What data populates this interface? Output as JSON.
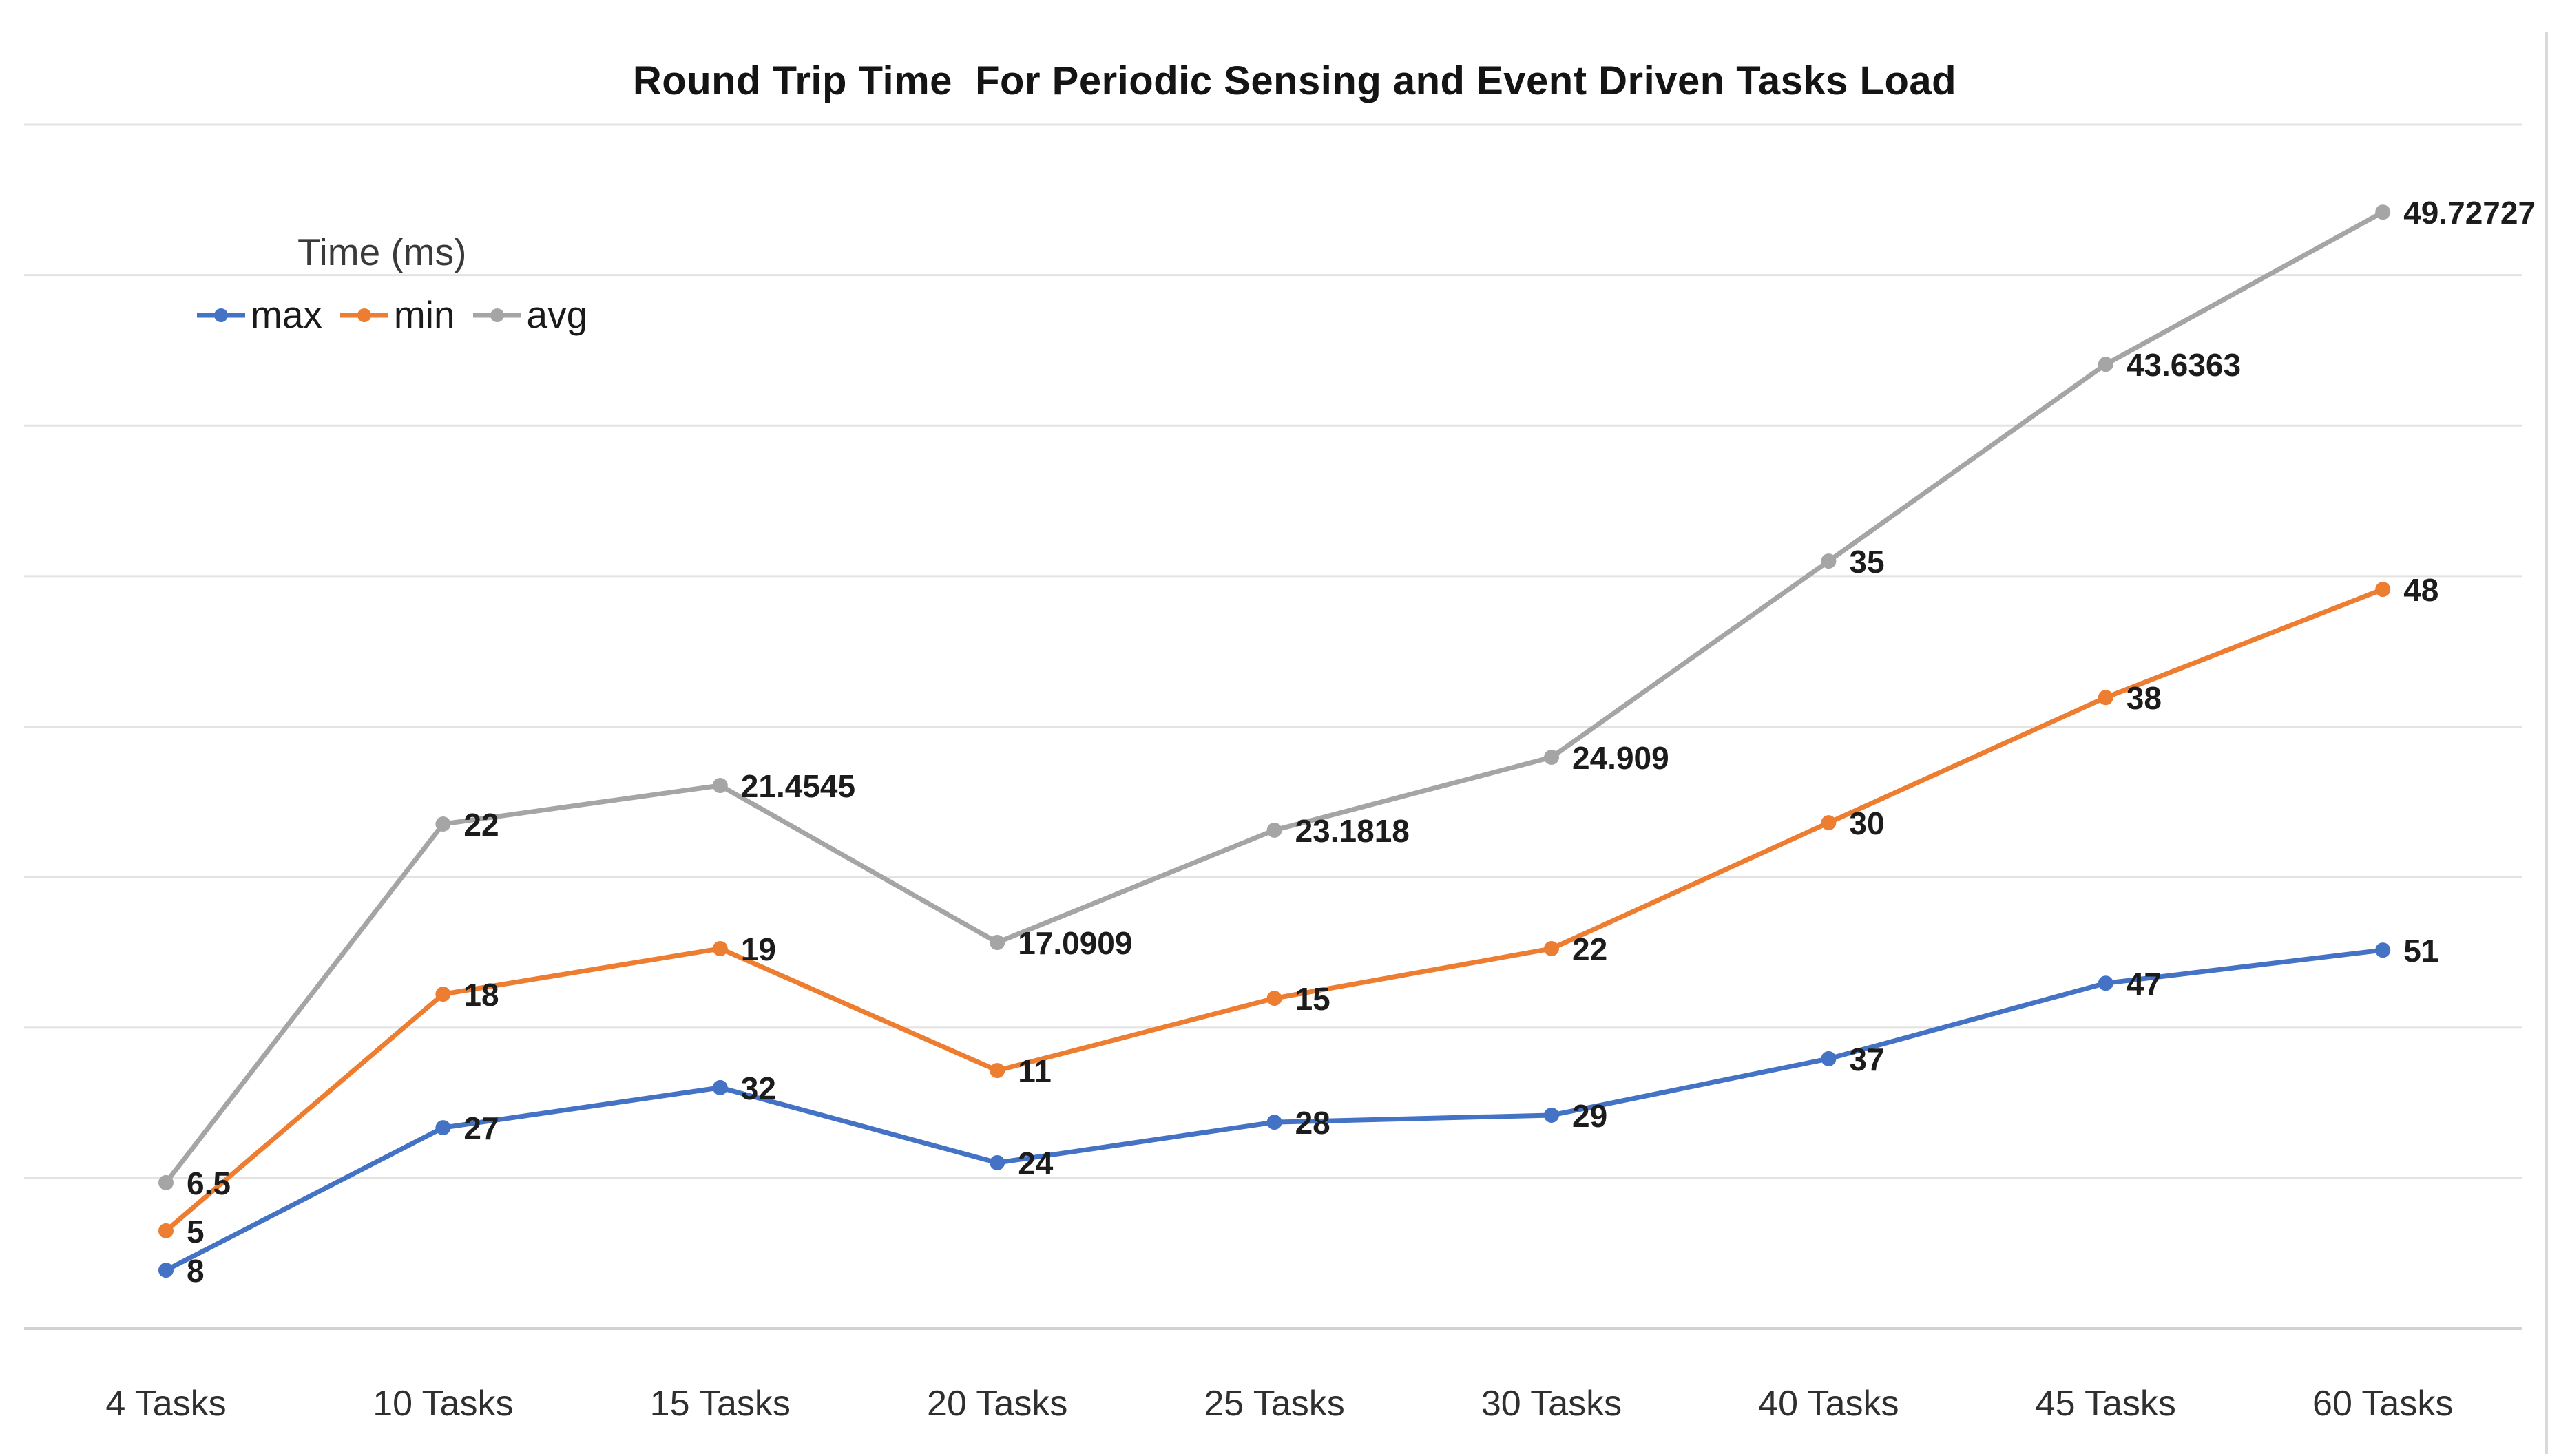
{
  "title": "Round Trip Time  For Periodic Sensing and Event Driven Tasks Load",
  "y_axis_title": "Time (ms)",
  "legend": [
    {
      "label": "max",
      "color": "#4472C4"
    },
    {
      "label": "min",
      "color": "#ED7D31"
    },
    {
      "label": "avg",
      "color": "#A5A5A5"
    }
  ],
  "chart_data": {
    "type": "line",
    "title": "Round Trip Time  For Periodic Sensing and Event Driven Tasks Load",
    "ylabel": "Time (ms)",
    "xlabel": "",
    "categories": [
      "4 Tasks",
      "10 Tasks",
      "15 Tasks",
      "20 Tasks",
      "25 Tasks",
      "30 Tasks",
      "40 Tasks",
      "45 Tasks",
      "60 Tasks"
    ],
    "series": [
      {
        "name": "max",
        "color": "#4472C4",
        "values": [
          8,
          27,
          32,
          24,
          28,
          29,
          37,
          47,
          51
        ],
        "labels": [
          "8",
          "27",
          "32",
          "24",
          "28",
          "29",
          "37",
          "47",
          "51"
        ],
        "plot_values": [
          2.67,
          9.18,
          11.01,
          7.58,
          9.43,
          9.75,
          12.33,
          15.78,
          17.29
        ]
      },
      {
        "name": "min",
        "color": "#ED7D31",
        "values": [
          5,
          18,
          19,
          11,
          15,
          22,
          30,
          38,
          48
        ],
        "labels": [
          "5",
          "18",
          "19",
          "11",
          "15",
          "22",
          "30",
          "38",
          "48"
        ],
        "plot_values": [
          4.47,
          15.28,
          17.36,
          11.79,
          15.09,
          17.36,
          23.11,
          28.83,
          33.77
        ]
      },
      {
        "name": "avg",
        "color": "#A5A5A5",
        "values": [
          6.5,
          22,
          21.4545,
          17.0909,
          23.1818,
          24.909,
          35,
          43.6363,
          49.72727
        ],
        "labels": [
          "6.5",
          "22",
          "21.4545",
          "17.0909",
          "23.1818",
          "24.909",
          "35",
          "43.6363",
          "49.72727"
        ],
        "plot_values": [
          6.67,
          23.05,
          24.81,
          17.64,
          22.77,
          26.1,
          35.06,
          44.05,
          51.0
        ]
      }
    ],
    "legend_position": "top-left",
    "grid": {
      "horizontal_lines": 9,
      "color": "#e3e3e3",
      "bottom_line_color": "#d2d2d2",
      "vertical": false
    },
    "axis": {
      "y_ticks_visible": false,
      "plot_value_scale": [
        0,
        55
      ],
      "right_border_color": "#d9d9d9"
    },
    "data_label_color": "#1c1c1c",
    "x_label_color": "#2f2f2f"
  }
}
